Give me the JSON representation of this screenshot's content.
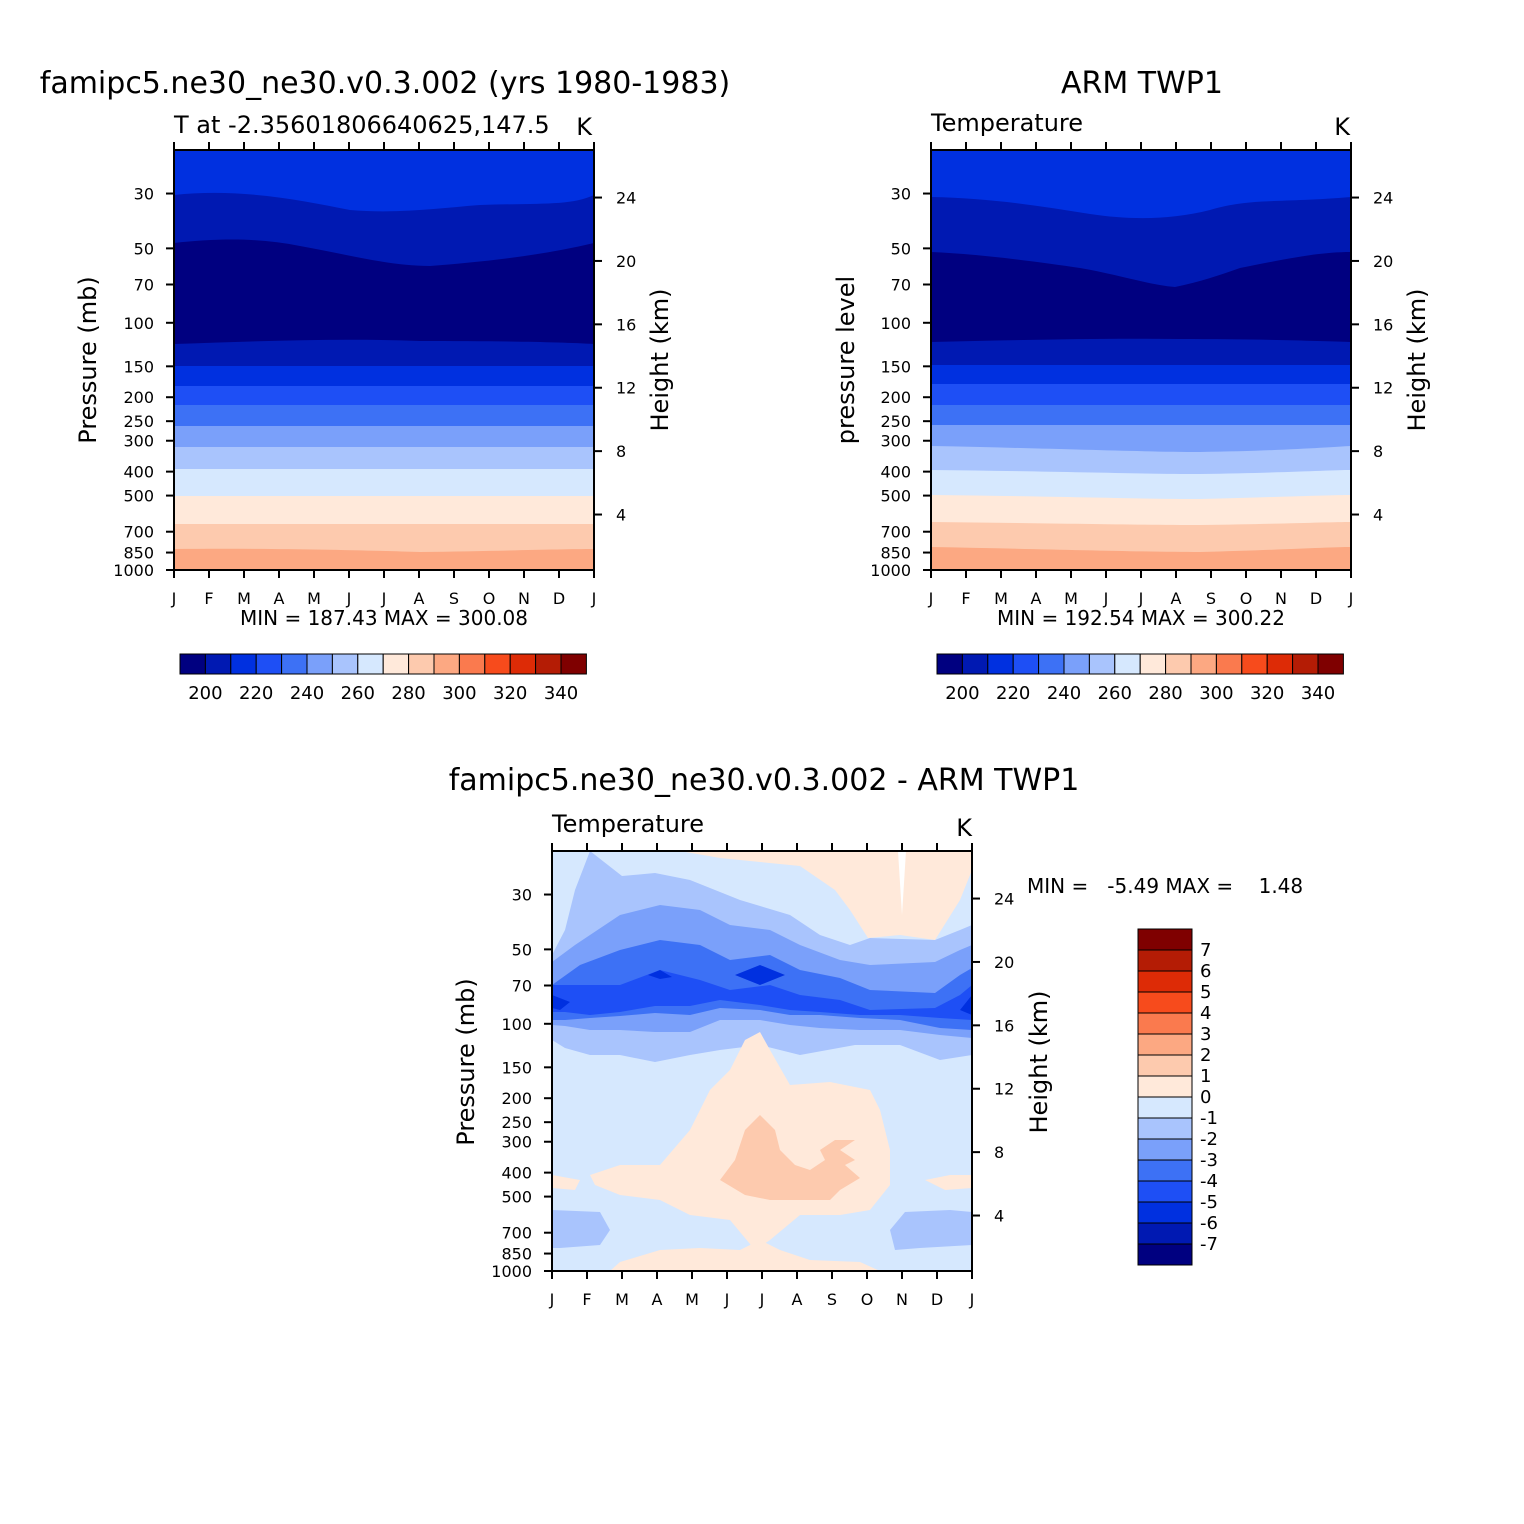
{
  "panels": [
    {
      "title": "famipc5.ne30_ne30.v0.3.002 (yrs 1980-1983)",
      "subtitle_left": "T at -2.35601806640625,147.5",
      "subtitle_right": "K",
      "y_left_label": "Pressure (mb)",
      "y_right_label": "Height (km)",
      "minmax": "MIN = 187.43 MAX = 300.08"
    },
    {
      "title": "ARM TWP1",
      "subtitle_left": "Temperature",
      "subtitle_right": "K",
      "y_left_label": "pressure level",
      "y_right_label": "Height (km)",
      "minmax": "MIN = 192.54 MAX = 300.22"
    },
    {
      "title": "famipc5.ne30_ne30.v0.3.002 - ARM TWP1",
      "subtitle_left": "Temperature",
      "subtitle_right": "K",
      "y_left_label": "Pressure (mb)",
      "y_right_label": "Height (km)",
      "minmax": "MIN =   -5.49 MAX =    1.48"
    }
  ],
  "axes": {
    "months": [
      "J",
      "F",
      "M",
      "A",
      "M",
      "J",
      "J",
      "A",
      "S",
      "O",
      "N",
      "D",
      "J"
    ],
    "pressure_ticks": [
      "30",
      "50",
      "70",
      "100",
      "150",
      "200",
      "250",
      "300",
      "400",
      "500",
      "700",
      "850",
      "1000"
    ],
    "height_ticks": [
      "24",
      "20",
      "16",
      "12",
      "8",
      "4"
    ]
  },
  "colorbar_abs": {
    "labels": [
      "200",
      "220",
      "240",
      "260",
      "280",
      "300",
      "320",
      "340"
    ],
    "colors": [
      "#000080",
      "#0019B2",
      "#0030E0",
      "#1E4FF5",
      "#3D71F5",
      "#7AA0FA",
      "#A9C4FD",
      "#D6E8FE",
      "#FFE9DA",
      "#FDCAAE",
      "#FCA882",
      "#FA7A4E",
      "#F74B1C",
      "#DD2B06",
      "#B41C05",
      "#7F0000"
    ]
  },
  "colorbar_diff": {
    "labels": [
      "7",
      "6",
      "5",
      "4",
      "3",
      "2",
      "1",
      "0",
      "-1",
      "-2",
      "-3",
      "-4",
      "-5",
      "-6",
      "-7"
    ],
    "colors": [
      "#7F0000",
      "#B41C05",
      "#DD2B06",
      "#F74B1C",
      "#FA7A4E",
      "#FCA882",
      "#FDCAAE",
      "#FFE9DA",
      "#D6E8FE",
      "#A9C4FD",
      "#7AA0FA",
      "#3D71F5",
      "#1E4FF5",
      "#0030E0",
      "#0019B2",
      "#000080"
    ]
  },
  "chart_data": [
    {
      "type": "heatmap",
      "title": "famipc5.ne30_ne30.v0.3.002 (yrs 1980-1983)",
      "subtitle": "T at -2.35601806640625,147.5",
      "units": "K",
      "x": [
        "J",
        "F",
        "M",
        "A",
        "M",
        "J",
        "J",
        "A",
        "S",
        "O",
        "N",
        "D",
        "J"
      ],
      "y_pressure_mb": [
        30,
        50,
        70,
        100,
        150,
        200,
        250,
        300,
        400,
        500,
        700,
        850,
        1000
      ],
      "y_height_km": [
        24,
        20,
        16,
        12,
        8,
        4
      ],
      "min": 187.43,
      "max": 300.08,
      "contour_levels": [
        190,
        200,
        210,
        220,
        230,
        240,
        250,
        260,
        270,
        280,
        290,
        300,
        310,
        320,
        330,
        340
      ],
      "ylabel": "Pressure (mb)",
      "ylabel_right": "Height (km)"
    },
    {
      "type": "heatmap",
      "title": "ARM TWP1",
      "subtitle": "Temperature",
      "units": "K",
      "x": [
        "J",
        "F",
        "M",
        "A",
        "M",
        "J",
        "J",
        "A",
        "S",
        "O",
        "N",
        "D",
        "J"
      ],
      "y_pressure_mb": [
        30,
        50,
        70,
        100,
        150,
        200,
        250,
        300,
        400,
        500,
        700,
        850,
        1000
      ],
      "y_height_km": [
        24,
        20,
        16,
        12,
        8,
        4
      ],
      "min": 192.54,
      "max": 300.22,
      "contour_levels": [
        190,
        200,
        210,
        220,
        230,
        240,
        250,
        260,
        270,
        280,
        290,
        300,
        310,
        320,
        330,
        340
      ],
      "ylabel": "pressure level",
      "ylabel_right": "Height (km)"
    },
    {
      "type": "heatmap",
      "title": "famipc5.ne30_ne30.v0.3.002 - ARM TWP1",
      "subtitle": "Temperature",
      "units": "K",
      "x": [
        "J",
        "F",
        "M",
        "A",
        "M",
        "J",
        "J",
        "A",
        "S",
        "O",
        "N",
        "D",
        "J"
      ],
      "y_pressure_mb": [
        30,
        50,
        70,
        100,
        150,
        200,
        250,
        300,
        400,
        500,
        700,
        850,
        1000
      ],
      "y_height_km": [
        24,
        20,
        16,
        12,
        8,
        4
      ],
      "min": -5.49,
      "max": 1.48,
      "contour_levels": [
        -7,
        -6,
        -5,
        -4,
        -3,
        -2,
        -1,
        0,
        1,
        2,
        3,
        4,
        5,
        6,
        7
      ],
      "ylabel": "Pressure (mb)",
      "ylabel_right": "Height (km)"
    }
  ]
}
